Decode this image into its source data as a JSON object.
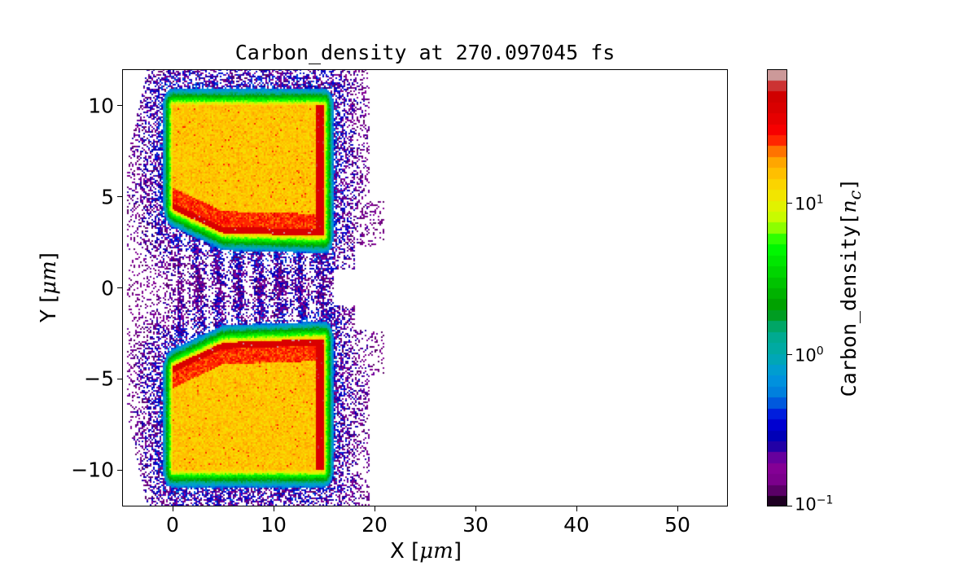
{
  "chart_data": {
    "type": "heatmap",
    "title": "Carbon_density at 270.097045 fs",
    "xlabel": "X [",
    "xlabel_unit": "μm",
    "ylabel": "Y [",
    "ylabel_unit": "μm",
    "label_close": "]",
    "xlim": [
      -5,
      55
    ],
    "ylim": [
      -12,
      12
    ],
    "xticks": [
      0,
      10,
      20,
      30,
      40,
      50
    ],
    "xtick_labels": [
      "0",
      "10",
      "20",
      "30",
      "40",
      "50"
    ],
    "yticks": [
      10,
      5,
      0,
      -5,
      -10
    ],
    "ytick_labels": [
      "10",
      "5",
      "0",
      "−5",
      "−10"
    ],
    "grid": false,
    "colormap": "nipy_spectral",
    "color_scale": "log",
    "color_levels": 40,
    "clim": [
      0.1,
      77
    ],
    "colorbar": {
      "label": "Carbon_density",
      "unit_open": "[",
      "unit": "n",
      "unit_sub": "c",
      "unit_close": "]",
      "ticks": [
        10,
        1,
        0.1
      ],
      "tick_labels": [
        {
          "base": "10",
          "exp": "1"
        },
        {
          "base": "10",
          "exp": "0"
        },
        {
          "base": "10",
          "exp": "−1"
        }
      ]
    },
    "features": [
      {
        "name": "upper target",
        "x_range": [
          0,
          15
        ],
        "y_range": [
          3,
          10
        ],
        "density": 15,
        "edge_density": 40
      },
      {
        "name": "lower target",
        "x_range": [
          0,
          15
        ],
        "y_range": [
          -10,
          -3
        ],
        "density": 15,
        "edge_density": 40
      },
      {
        "name": "expanding plasma halo",
        "x_range": [
          -4.5,
          21
        ],
        "y_range": [
          -12,
          12
        ],
        "density_range": [
          0.12,
          1
        ]
      }
    ]
  }
}
